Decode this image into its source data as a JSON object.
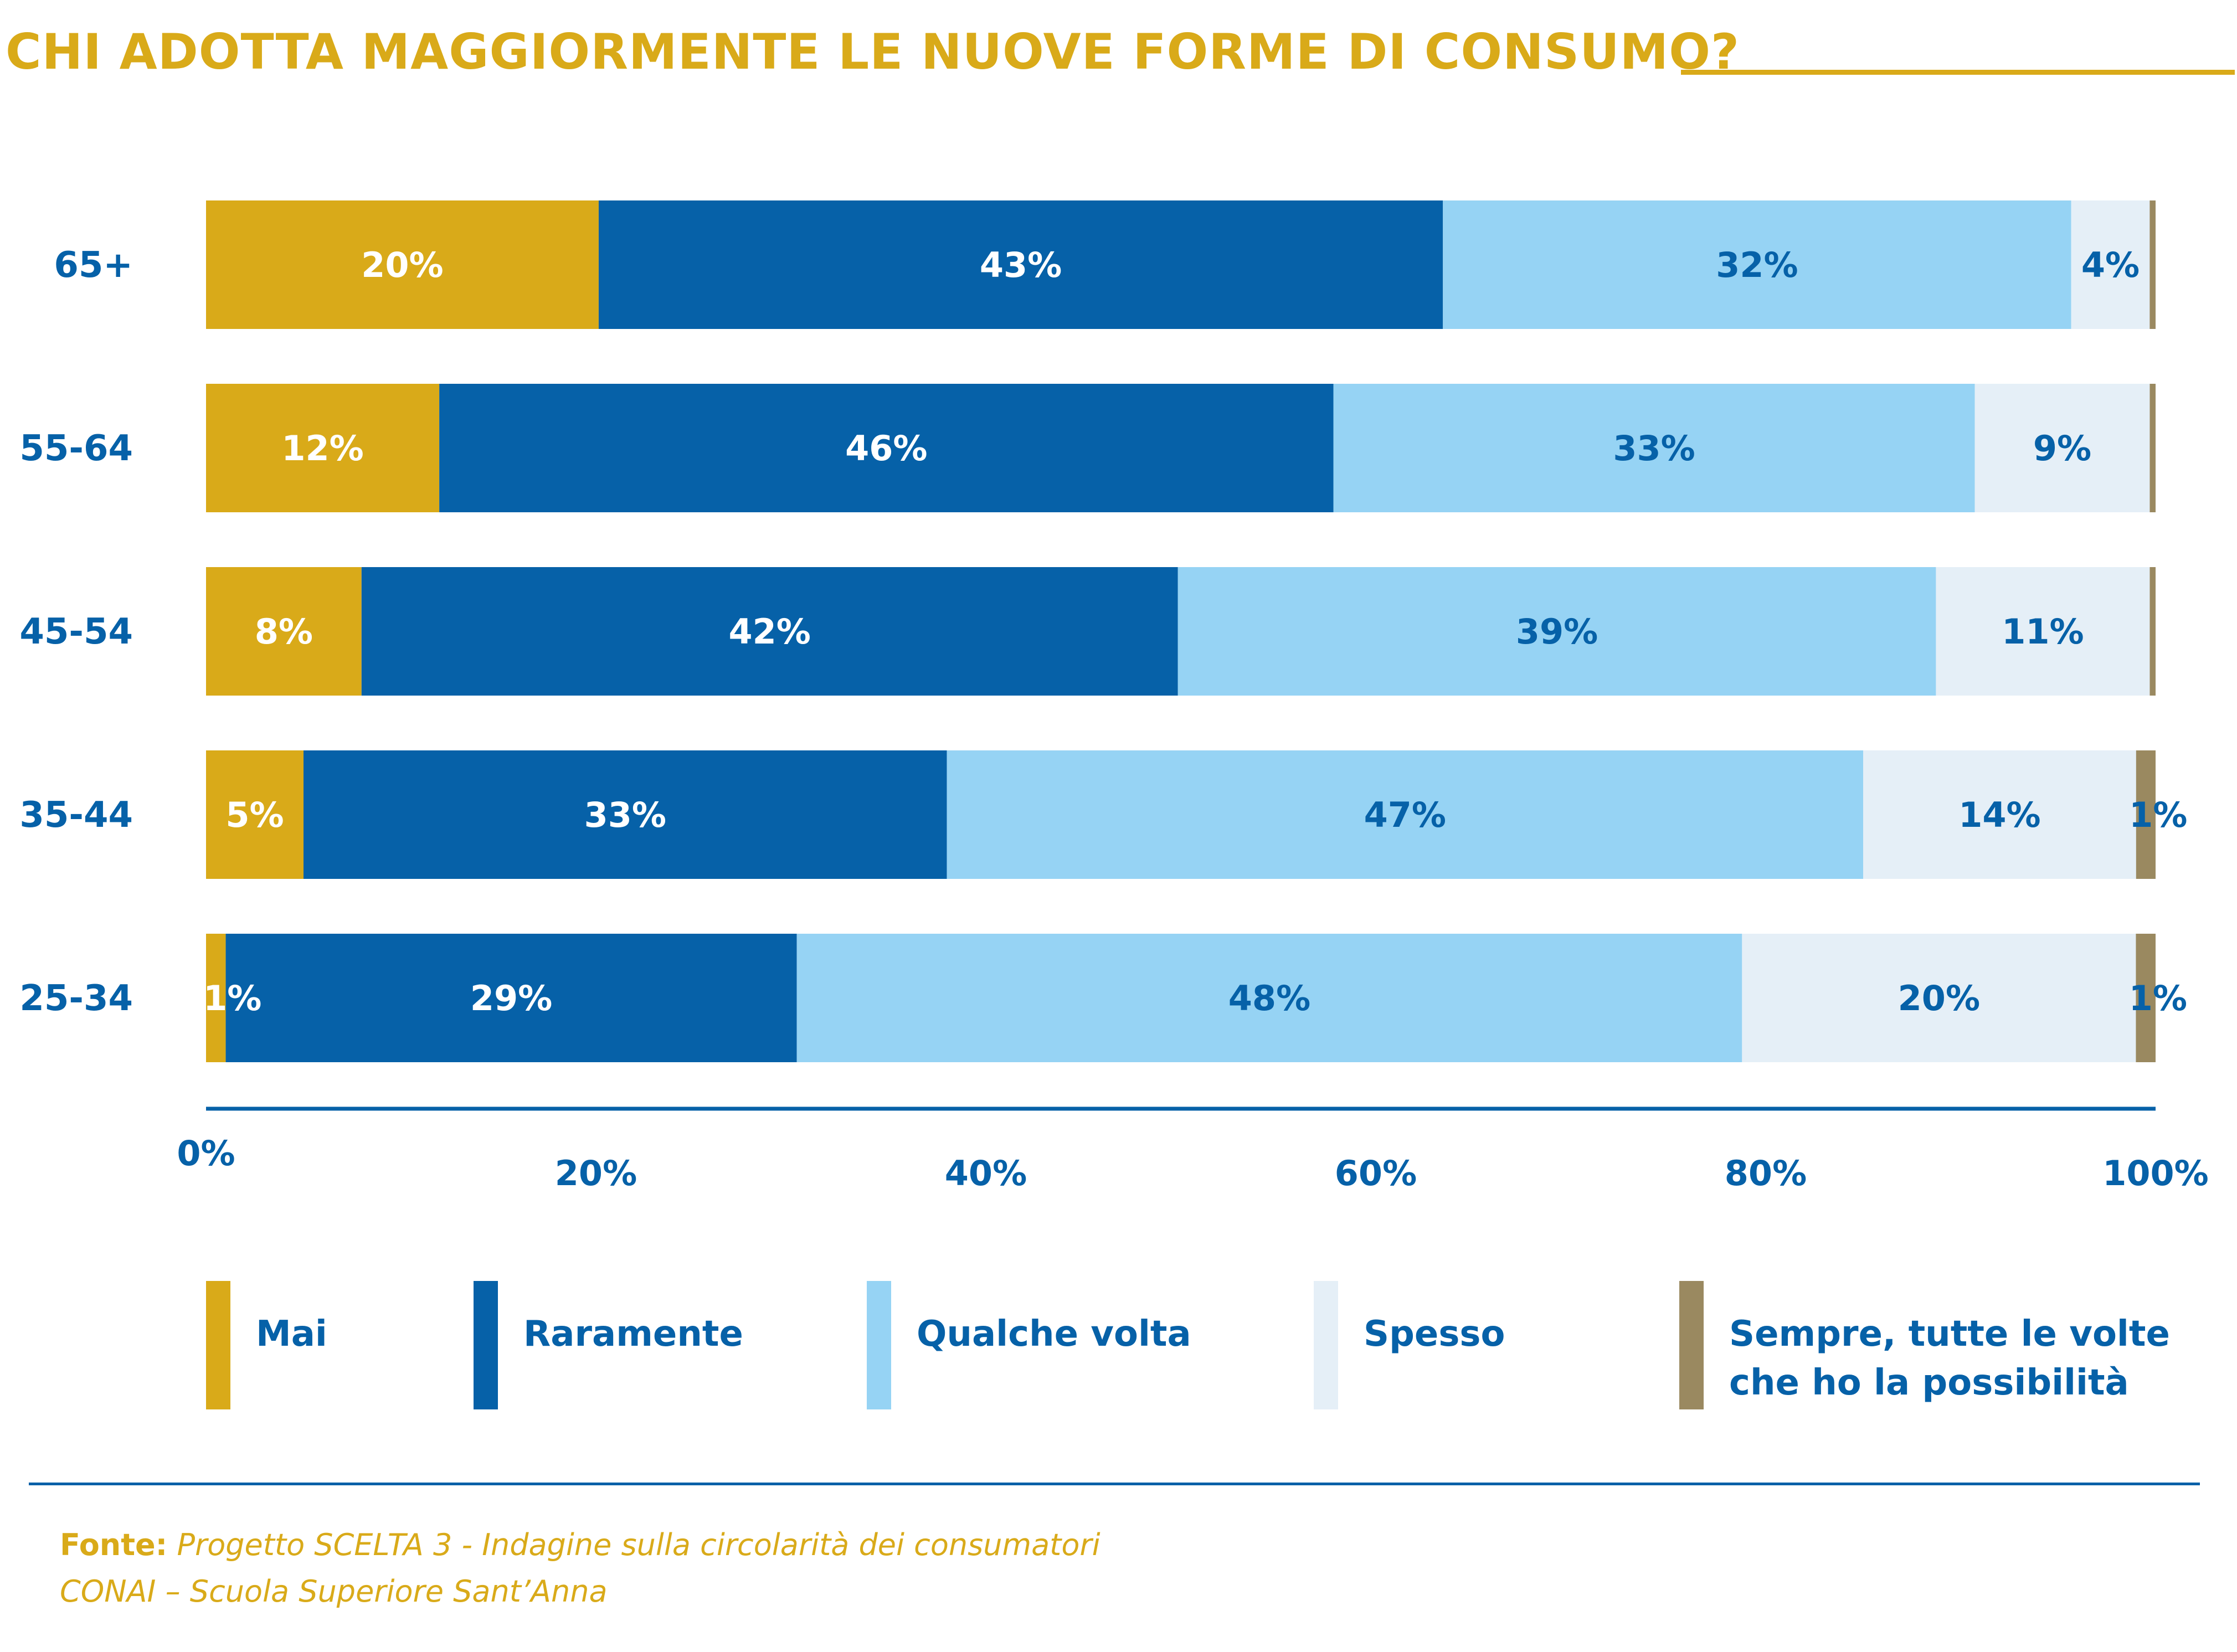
{
  "title": "CHI ADOTTA MAGGIORMENTE LE NUOVE FORME DI CONSUMO?",
  "source": {
    "label": "Fonte:",
    "line1": "Progetto SCELTA 3 - Indagine sulla circolarità dei consumatori",
    "line2": "CONAI – Scuola Superiore Sant’Anna"
  },
  "colors": {
    "mai": "#d9aa19",
    "raramente": "#0661a8",
    "qualche_volta": "#96d3f4",
    "spesso": "#e5eff7",
    "sempre": "#9a8960",
    "axis": "#0661a8"
  },
  "chart_data": {
    "type": "bar",
    "orientation": "horizontal",
    "stacked": true,
    "categories": [
      "65+",
      "55-64",
      "45-54",
      "35-44",
      "25-34"
    ],
    "series": [
      {
        "name": "Mai",
        "color": "#d9aa19",
        "label_color": "#ffffff",
        "values": [
          20,
          12,
          8,
          5,
          1
        ]
      },
      {
        "name": "Raramente",
        "color": "#0661a8",
        "label_color": "#ffffff",
        "values": [
          43,
          46,
          42,
          33,
          29
        ]
      },
      {
        "name": "Qualche volta",
        "color": "#96d3f4",
        "label_color": "#0661a8",
        "values": [
          32,
          33,
          39,
          47,
          48
        ]
      },
      {
        "name": "Spesso",
        "color": "#e5eff7",
        "label_color": "#0661a8",
        "values": [
          4,
          9,
          11,
          14,
          20
        ]
      },
      {
        "name": "Sempre, tutte le volte che ho la possibilità",
        "color": "#9a8960",
        "label_color": "#0661a8",
        "values": [
          0.3,
          0.3,
          0.3,
          1,
          1
        ]
      }
    ],
    "data_labels": [
      [
        "20%",
        "43%",
        "32%",
        "4%",
        ""
      ],
      [
        "12%",
        "46%",
        "33%",
        "9%",
        ""
      ],
      [
        "8%",
        "42%",
        "39%",
        "11%",
        ""
      ],
      [
        "5%",
        "33%",
        "47%",
        "14%",
        "1%"
      ],
      [
        "1%",
        "29%",
        "48%",
        "20%",
        "1%"
      ]
    ],
    "x_ticks": [
      "0%",
      "20%",
      "40%",
      "60%",
      "80%",
      "100%"
    ],
    "xlim": [
      0,
      100
    ],
    "legend": [
      {
        "label_lines": [
          "Mai"
        ],
        "color": "#d9aa19"
      },
      {
        "label_lines": [
          "Raramente"
        ],
        "color": "#0661a8"
      },
      {
        "label_lines": [
          "Qualche volta"
        ],
        "color": "#96d3f4"
      },
      {
        "label_lines": [
          "Spesso"
        ],
        "color": "#e5eff7"
      },
      {
        "label_lines": [
          "Sempre, tutte le volte",
          "che ho la possibilità"
        ],
        "color": "#9a8960"
      }
    ],
    "legend_position": "bottom"
  }
}
